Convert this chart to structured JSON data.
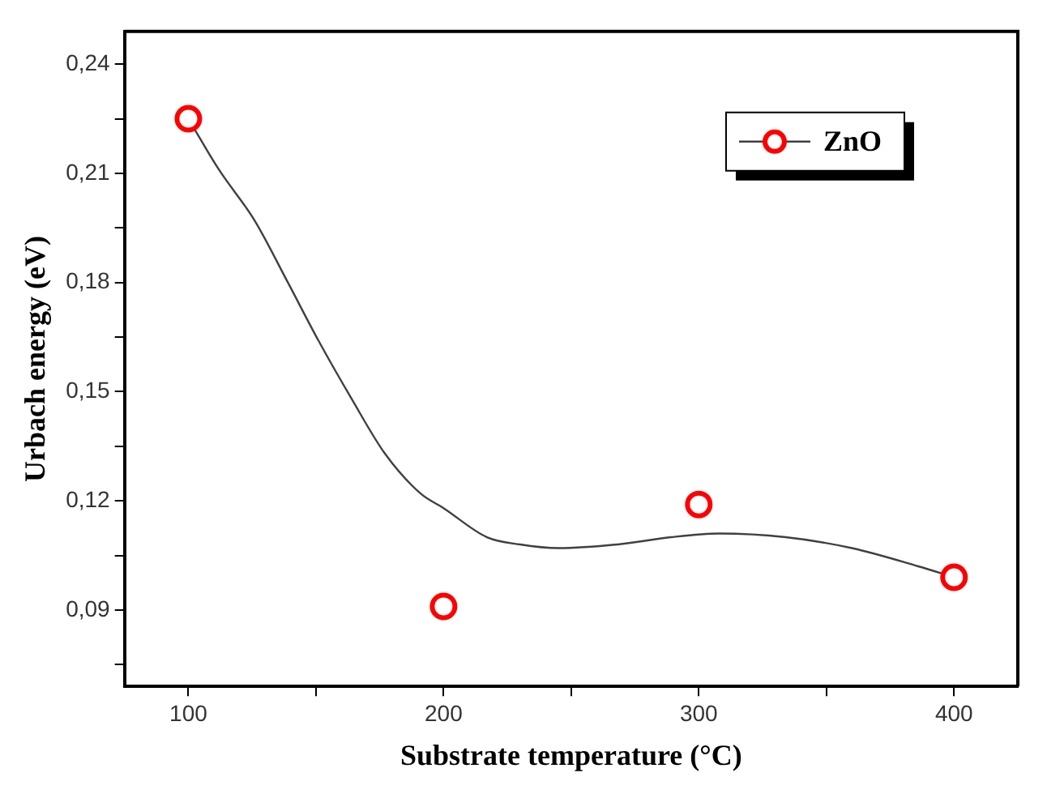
{
  "chart_data": {
    "type": "scatter",
    "xlabel": "Substrate temperature (°C)",
    "ylabel": "Urbach energy (eV)",
    "xlim": [
      75,
      425
    ],
    "ylim": [
      0.069,
      0.249
    ],
    "xticks": [
      100,
      {
        "value": 150,
        "label": null
      },
      200,
      {
        "value": 250,
        "label": null
      },
      300,
      {
        "value": 350,
        "label": null
      },
      400
    ],
    "yticks": [
      {
        "value": 0.075,
        "label": null
      },
      {
        "value": 0.09,
        "label": "0,09"
      },
      {
        "value": 0.105,
        "label": null
      },
      {
        "value": 0.12,
        "label": "0,12"
      },
      {
        "value": 0.135,
        "label": null
      },
      {
        "value": 0.15,
        "label": "0,15"
      },
      {
        "value": 0.165,
        "label": null
      },
      {
        "value": 0.18,
        "label": "0,18"
      },
      {
        "value": 0.195,
        "label": null
      },
      {
        "value": 0.21,
        "label": "0,21"
      },
      {
        "value": 0.225,
        "label": null
      },
      {
        "value": 0.24,
        "label": "0,24"
      }
    ],
    "grid": false,
    "legend": "top right",
    "marker": "circle",
    "series": [
      {
        "name": "ZnO",
        "color": "#ff0000",
        "x": [
          100,
          200,
          300,
          400
        ],
        "values": [
          0.225,
          0.091,
          0.119,
          0.099
        ]
      },
      {
        "type": "line",
        "color": "#404040",
        "marker": "none",
        "x": [
          100,
          112,
          126,
          139,
          151,
          164,
          177,
          191,
          200,
          217,
          230,
          245,
          268,
          289,
          308,
          334,
          360,
          386,
          400
        ],
        "values": [
          0.225,
          0.211,
          0.197,
          0.18,
          0.164,
          0.148,
          0.133,
          0.122,
          0.118,
          0.11,
          0.108,
          0.107,
          0.108,
          0.11,
          0.111,
          0.11,
          0.107,
          0.102,
          0.099
        ]
      }
    ]
  }
}
